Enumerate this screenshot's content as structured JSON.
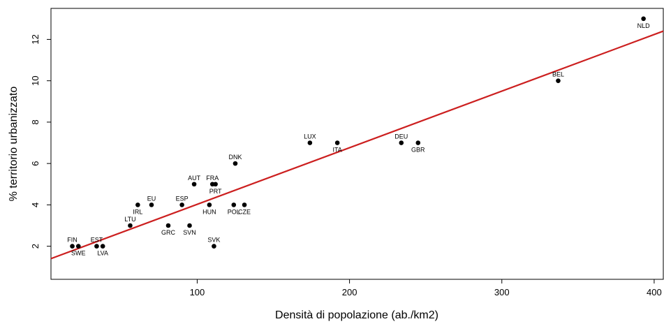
{
  "chart_data": {
    "type": "scatter",
    "title": "",
    "xlabel": "Densità di popolazione (ab./km2)",
    "ylabel": "% territorio urbanizzato",
    "xlim": [
      4,
      406
    ],
    "ylim": [
      0.4,
      13.5
    ],
    "x_ticks": [
      100,
      200,
      300,
      400
    ],
    "y_ticks": [
      2,
      4,
      6,
      8,
      10,
      12
    ],
    "grid": false,
    "legend": "none",
    "point_color": "#000000",
    "line_color": "#cc1f1f",
    "points": [
      {
        "label": "NLD",
        "x": 393,
        "y": 13,
        "label_pos": "below"
      },
      {
        "label": "BEL",
        "x": 337,
        "y": 10,
        "label_pos": "above"
      },
      {
        "label": "DEU",
        "x": 234,
        "y": 7,
        "label_pos": "above"
      },
      {
        "label": "GBR",
        "x": 245,
        "y": 7,
        "label_pos": "below"
      },
      {
        "label": "LUX",
        "x": 174,
        "y": 7,
        "label_pos": "above"
      },
      {
        "label": "ITA",
        "x": 192,
        "y": 7,
        "label_pos": "below"
      },
      {
        "label": "DNK",
        "x": 125,
        "y": 6,
        "label_pos": "above"
      },
      {
        "label": "FRA",
        "x": 110,
        "y": 5,
        "label_pos": "above"
      },
      {
        "label": "PRT",
        "x": 112,
        "y": 5,
        "label_pos": "below"
      },
      {
        "label": "AUT",
        "x": 98,
        "y": 5,
        "label_pos": "above"
      },
      {
        "label": "POL",
        "x": 124,
        "y": 4,
        "label_pos": "below"
      },
      {
        "label": "CZE",
        "x": 131,
        "y": 4,
        "label_pos": "below"
      },
      {
        "label": "HUN",
        "x": 108,
        "y": 4,
        "label_pos": "below"
      },
      {
        "label": "ESP",
        "x": 90,
        "y": 4,
        "label_pos": "above"
      },
      {
        "label": "EU",
        "x": 70,
        "y": 4,
        "label_pos": "above"
      },
      {
        "label": "IRL",
        "x": 61,
        "y": 4,
        "label_pos": "below"
      },
      {
        "label": "LTU",
        "x": 56,
        "y": 3,
        "label_pos": "above"
      },
      {
        "label": "GRC",
        "x": 81,
        "y": 3,
        "label_pos": "below"
      },
      {
        "label": "SVN",
        "x": 95,
        "y": 3,
        "label_pos": "below"
      },
      {
        "label": "SVK",
        "x": 111,
        "y": 2,
        "label_pos": "above"
      },
      {
        "label": "FIN",
        "x": 18,
        "y": 2,
        "label_pos": "above"
      },
      {
        "label": "SWE",
        "x": 22,
        "y": 2,
        "label_pos": "below"
      },
      {
        "label": "EST",
        "x": 34,
        "y": 2,
        "label_pos": "above"
      },
      {
        "label": "LVA",
        "x": 38,
        "y": 2,
        "label_pos": "below"
      }
    ],
    "regression_line": {
      "x": [
        4,
        406
      ],
      "y": [
        1.4,
        12.4
      ]
    }
  }
}
